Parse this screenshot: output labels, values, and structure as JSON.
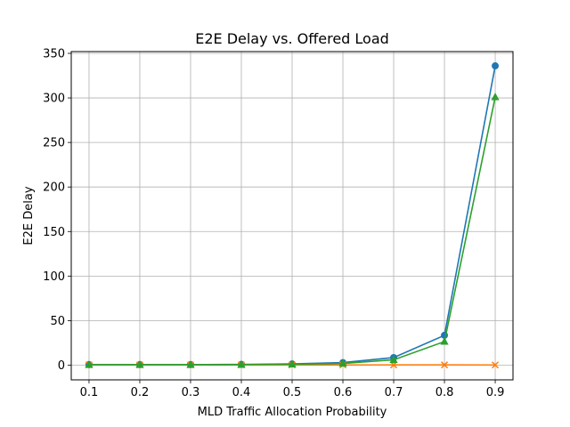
{
  "chart_data": {
    "type": "line",
    "title": "E2E Delay vs. Offered Load",
    "xlabel": "MLD Traffic Allocation Probability",
    "ylabel": "E2E Delay",
    "x": [
      0.1,
      0.2,
      0.3,
      0.4,
      0.5,
      0.6,
      0.7,
      0.8,
      0.9
    ],
    "xlim": [
      0.065,
      0.935
    ],
    "ylim": [
      -16.5,
      352
    ],
    "xticks": [
      "0.1",
      "0.2",
      "0.3",
      "0.4",
      "0.5",
      "0.6",
      "0.7",
      "0.8",
      "0.9"
    ],
    "yticks": [
      "0",
      "50",
      "100",
      "150",
      "200",
      "250",
      "300",
      "350"
    ],
    "grid": true,
    "series": [
      {
        "color": "#1f77b4",
        "marker": "circle",
        "values": [
          0.6,
          0.6,
          0.6,
          0.8,
          1.4,
          2.9,
          8.5,
          33.5,
          336
        ]
      },
      {
        "color": "#ff7f0e",
        "marker": "x",
        "values": [
          0.2,
          0.2,
          0.2,
          0.2,
          0.2,
          0.2,
          0.3,
          0.3,
          0.2
        ]
      },
      {
        "color": "#2ca02c",
        "marker": "triangle",
        "values": [
          0.5,
          0.5,
          0.5,
          0.6,
          1.0,
          1.9,
          6.0,
          26.5,
          301
        ]
      }
    ]
  }
}
